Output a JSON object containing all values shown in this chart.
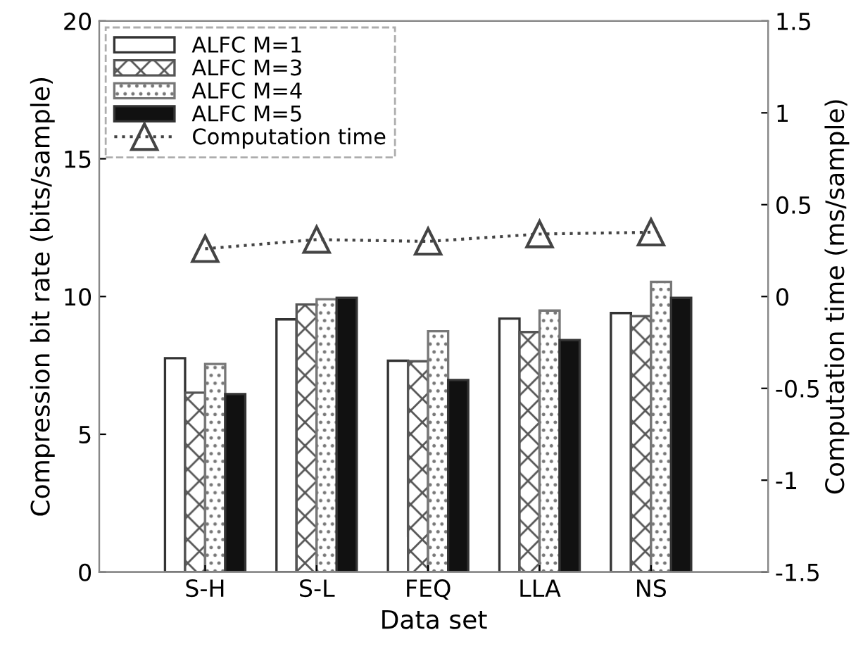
{
  "chart_data": {
    "type": "bar",
    "xlabel": "Data set",
    "ylabel": "Compression bit rate (bits/sample)",
    "y2label": "Computation time (ms/sample)",
    "categories": [
      "S-H",
      "S-L",
      "FEQ",
      "LLA",
      "NS"
    ],
    "series": [
      {
        "name": "ALFC M=1",
        "color": "#ffffff",
        "values": [
          7.76,
          9.17,
          7.67,
          9.2,
          9.4
        ]
      },
      {
        "name": "ALFC M=3",
        "color": "#555555",
        "values": [
          6.51,
          9.71,
          7.65,
          8.71,
          9.29
        ]
      },
      {
        "name": "ALFC M=4",
        "color": "#777777",
        "values": [
          7.55,
          9.9,
          8.74,
          9.49,
          10.53
        ]
      },
      {
        "name": "ALFC M=5",
        "color": "#111111",
        "values": [
          6.46,
          9.95,
          6.97,
          8.42,
          9.95
        ]
      },
      {
        "name": "Computation time",
        "type": "line",
        "axis": "y2",
        "color": "#444444",
        "marker": "triangle",
        "line_style": "dotted",
        "values": [
          0.26,
          0.31,
          0.3,
          0.34,
          0.35
        ]
      }
    ],
    "ylim": [
      0,
      20
    ],
    "yticks": [
      0,
      5,
      10,
      15,
      20
    ],
    "y2lim": [
      -1.5,
      1.5
    ],
    "y2ticks": [
      -1.5,
      -1,
      -0.5,
      0,
      0.5,
      1,
      1.5
    ],
    "legend": "top left",
    "grid": false
  }
}
